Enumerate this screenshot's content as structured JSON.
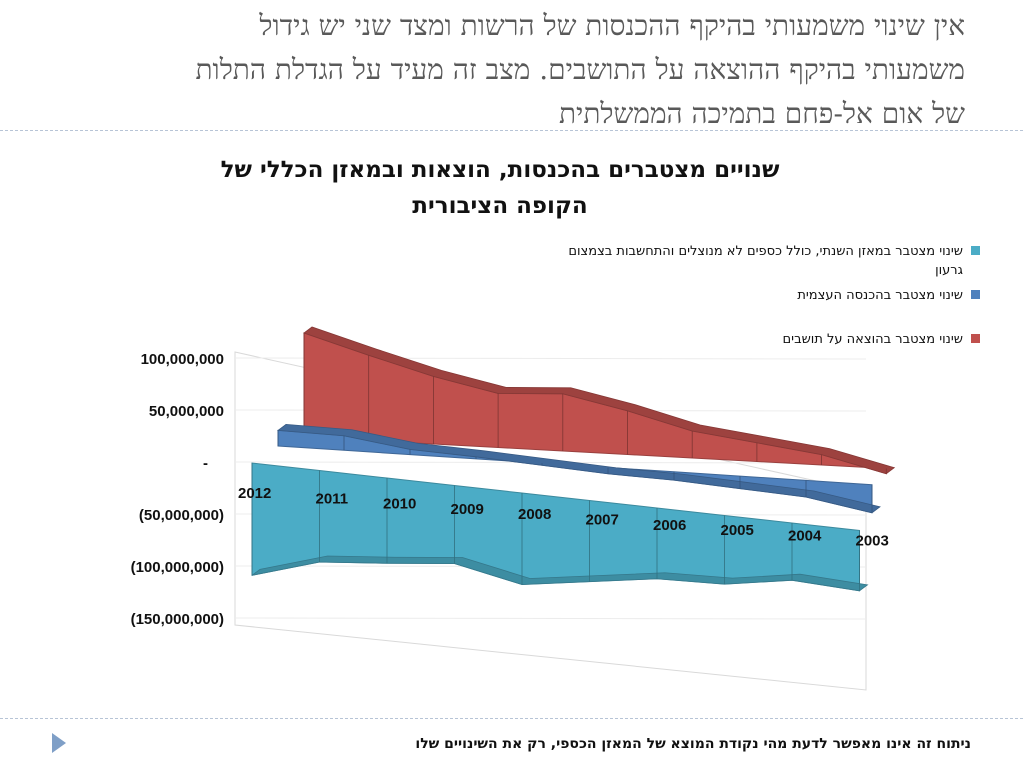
{
  "slide": {
    "title_lines": [
      "אין שינוי משמעותי בהיקף ההכנסות של הרשות ומצד שני יש גידול",
      "משמעותי בהיקף ההוצאה על התושבים. מצב זה מעיד על הגדלת התלות",
      "של אום אל-פחם בתמיכה הממשלתית"
    ],
    "footer_note": "ניתוח זה אינו מאפשר לדעת מהי נקודת המוצא של המאזן הכספי, רק את השינויים שלו",
    "nav_icon": "play-triangle-icon"
  },
  "chart_data": {
    "type": "area",
    "title_lines": [
      "שנויים מצטברים בהכנסות, הוצאות ובמאזן הכללי של",
      "הקופה הציבורית"
    ],
    "categories": [
      "2012",
      "2011",
      "2010",
      "2009",
      "2008",
      "2007",
      "2006",
      "2005",
      "2004",
      "2003"
    ],
    "y_tick_labels": [
      "100,000,000",
      "50,000,000",
      "-",
      "(50,000,000)",
      "(100,000,000)",
      "(150,000,000)"
    ],
    "y_ticks": [
      100000000,
      50000000,
      0,
      -50000000,
      -100000000,
      -150000000
    ],
    "ylim": [
      -150000000,
      100000000
    ],
    "legend_position": "top-right",
    "series": [
      {
        "name": "שינוי מצטבר במאזן השנתי, כולל כספים לא מנוצלים והתחשבות בצמצום גרעון",
        "color": "#4bacc6",
        "values": [
          -108000000,
          -88000000,
          -82000000,
          -75000000,
          -88000000,
          -78000000,
          -68000000,
          -66000000,
          -55000000,
          -58000000
        ]
      },
      {
        "name": "שינוי מצטבר בהכנסה העצמית",
        "color": "#4f81bd",
        "values": [
          15000000,
          14000000,
          5000000,
          2000000,
          -2000000,
          -6000000,
          -8000000,
          -12000000,
          -16000000,
          -27000000
        ]
      },
      {
        "name": "שינוי מצטבר בהוצאה על תושבים",
        "color": "#c0504d",
        "values": [
          100000000,
          82000000,
          65000000,
          52000000,
          55000000,
          42000000,
          26000000,
          18000000,
          10000000,
          -5000000
        ]
      }
    ]
  }
}
